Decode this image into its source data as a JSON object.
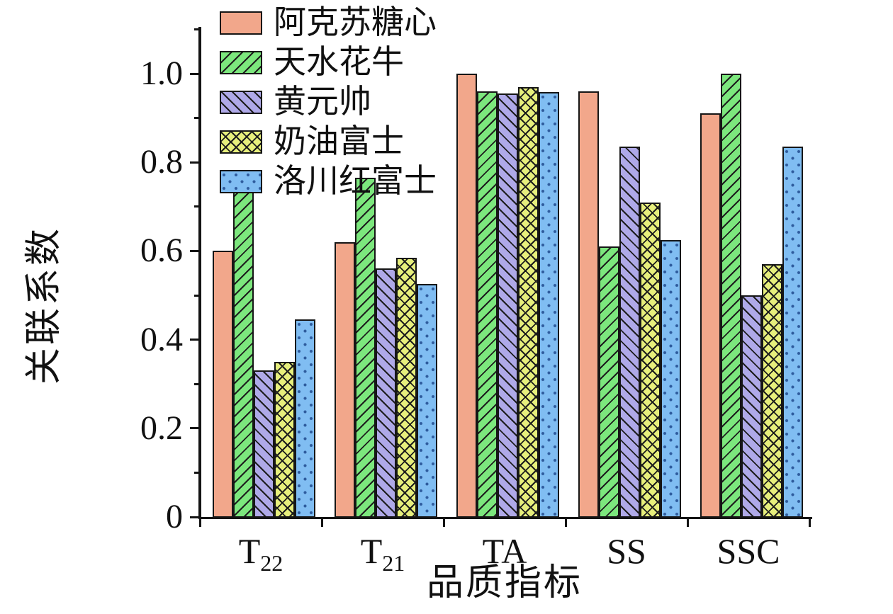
{
  "chart_data": {
    "type": "bar",
    "title": "",
    "xlabel": "品质指标",
    "ylabel": "关联系数",
    "categories": [
      "T22",
      "T21",
      "TA",
      "SS",
      "SSC"
    ],
    "category_labels": [
      {
        "base": "T",
        "sub": "22"
      },
      {
        "base": "T",
        "sub": "21"
      },
      {
        "base": "TA",
        "sub": ""
      },
      {
        "base": "SS",
        "sub": ""
      },
      {
        "base": "SSC",
        "sub": ""
      }
    ],
    "series": [
      {
        "name": "阿克苏糖心",
        "color": "#F2A78B",
        "hatch": "none",
        "values": [
          0.6,
          0.62,
          1.0,
          0.96,
          0.91
        ]
      },
      {
        "name": "天水花牛",
        "color": "#7CE77D",
        "hatch": "forward-diagonal",
        "values": [
          0.775,
          0.765,
          0.96,
          0.61,
          1.0
        ]
      },
      {
        "name": "黄元帅",
        "color": "#AFA9E8",
        "hatch": "back-diagonal",
        "values": [
          0.33,
          0.56,
          0.955,
          0.835,
          0.5
        ]
      },
      {
        "name": "奶油富士",
        "color": "#E7EF7C",
        "hatch": "crosshatch",
        "values": [
          0.35,
          0.585,
          0.97,
          0.71,
          0.57
        ]
      },
      {
        "name": "洛川红富士",
        "color": "#80BDF2",
        "hatch": "dots",
        "values": [
          0.445,
          0.525,
          0.958,
          0.625,
          0.835
        ]
      }
    ],
    "ylim": [
      0,
      1.1
    ],
    "yticks": {
      "major": [
        0,
        0.2,
        0.4,
        0.6,
        0.8,
        1.0
      ],
      "major_labels": [
        "0",
        "0.2",
        "0.4",
        "0.6",
        "0.8",
        "1.0"
      ],
      "minor": [
        0.1,
        0.3,
        0.5,
        0.7,
        0.9,
        1.1
      ]
    },
    "grid": "off",
    "legend_position": "top-left",
    "colors": {
      "axis": "#141414",
      "hatch_line": "#1d1d1d",
      "dot": "#2e5b9d",
      "background": "#ffffff"
    }
  }
}
